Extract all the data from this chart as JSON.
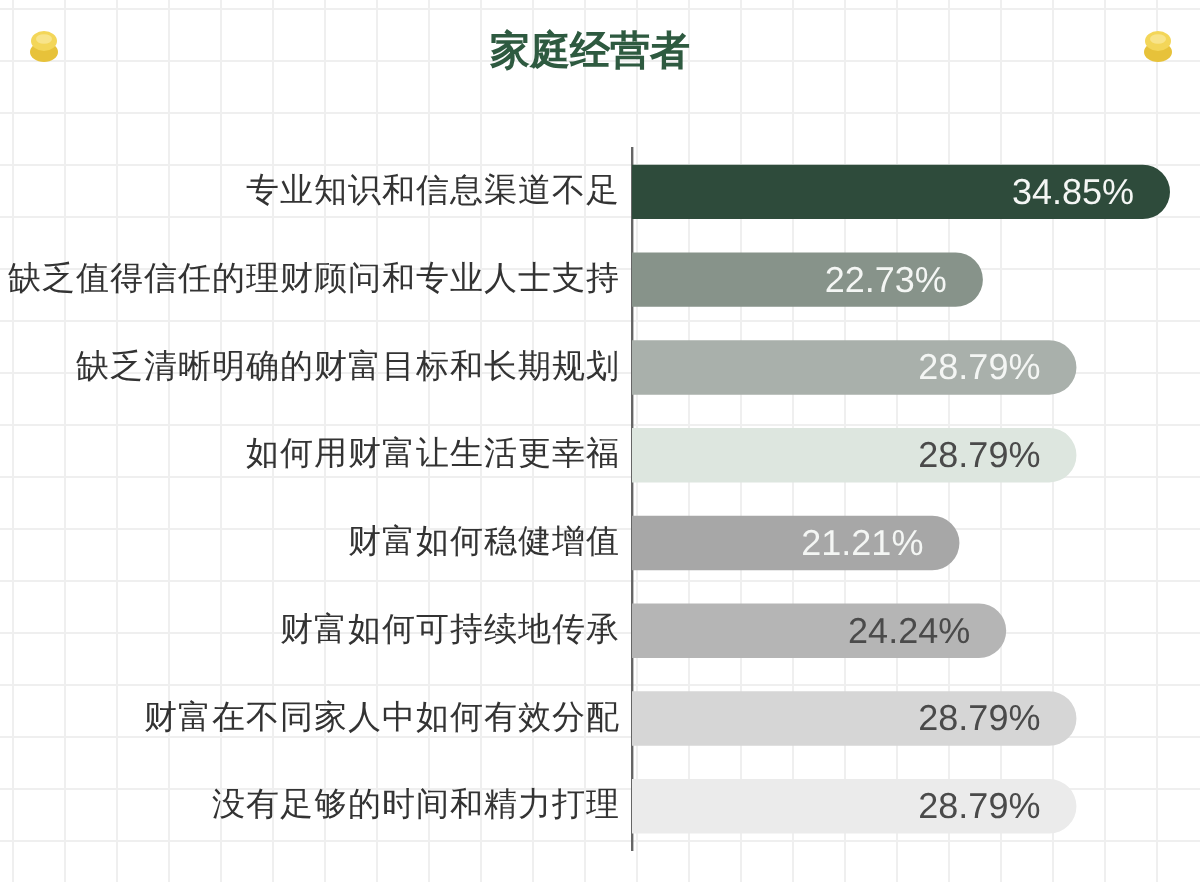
{
  "chart_data": {
    "type": "bar",
    "orientation": "horizontal",
    "title": "家庭经营者",
    "categories": [
      "专业知识和信息渠道不足",
      "缺乏值得信任的理财顾问和专业人士支持",
      "缺乏清晰明确的财富目标和长期规划",
      "如何用财富让生活更幸福",
      "财富如何稳健增值",
      "财富如何可持续地传承",
      "财富在不同家人中如何有效分配",
      "没有足够的时间和精力打理"
    ],
    "values": [
      34.85,
      22.73,
      28.79,
      28.79,
      21.21,
      24.24,
      28.79,
      28.79
    ],
    "colors": [
      "#2e4b3b",
      "#87938a",
      "#a9b0ab",
      "#dde6df",
      "#a7a7a7",
      "#b5b5b5",
      "#d6d6d6",
      "#ebebeb"
    ],
    "value_labels": [
      "34.85%",
      "22.73%",
      "28.79%",
      "28.79%",
      "21.21%",
      "24.24%",
      "28.79%",
      "28.79%"
    ],
    "tick_labels": "y"
  }
}
